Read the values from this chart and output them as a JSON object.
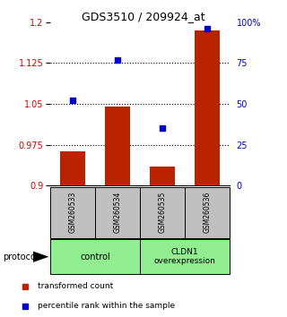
{
  "title": "GDS3510 / 209924_at",
  "samples": [
    "GSM260533",
    "GSM260534",
    "GSM260535",
    "GSM260536"
  ],
  "red_values": [
    0.963,
    1.045,
    0.934,
    1.185
  ],
  "blue_values": [
    52,
    77,
    35,
    96
  ],
  "ylim_left": [
    0.9,
    1.2
  ],
  "ylim_right": [
    0,
    100
  ],
  "yticks_left": [
    0.9,
    0.975,
    1.05,
    1.125,
    1.2
  ],
  "ytick_labels_left": [
    "0.9",
    "0.975",
    "1.05",
    "1.125",
    "1.2"
  ],
  "yticks_right": [
    0,
    25,
    50,
    75,
    100
  ],
  "ytick_labels_right": [
    "0",
    "25",
    "50",
    "75",
    "100%"
  ],
  "dotted_lines": [
    0.975,
    1.05,
    1.125
  ],
  "bar_color": "#BB2200",
  "blue_color": "#0000CC",
  "bar_width": 0.55,
  "bar_baseline": 0.9,
  "protocol_label": "protocol",
  "legend_red_label": "transformed count",
  "legend_blue_label": "percentile rank within the sample",
  "left_axis_color": "#CC0000",
  "right_axis_color": "#0000CC",
  "group_color": "#90EE90",
  "sample_box_color": "#C0C0C0"
}
